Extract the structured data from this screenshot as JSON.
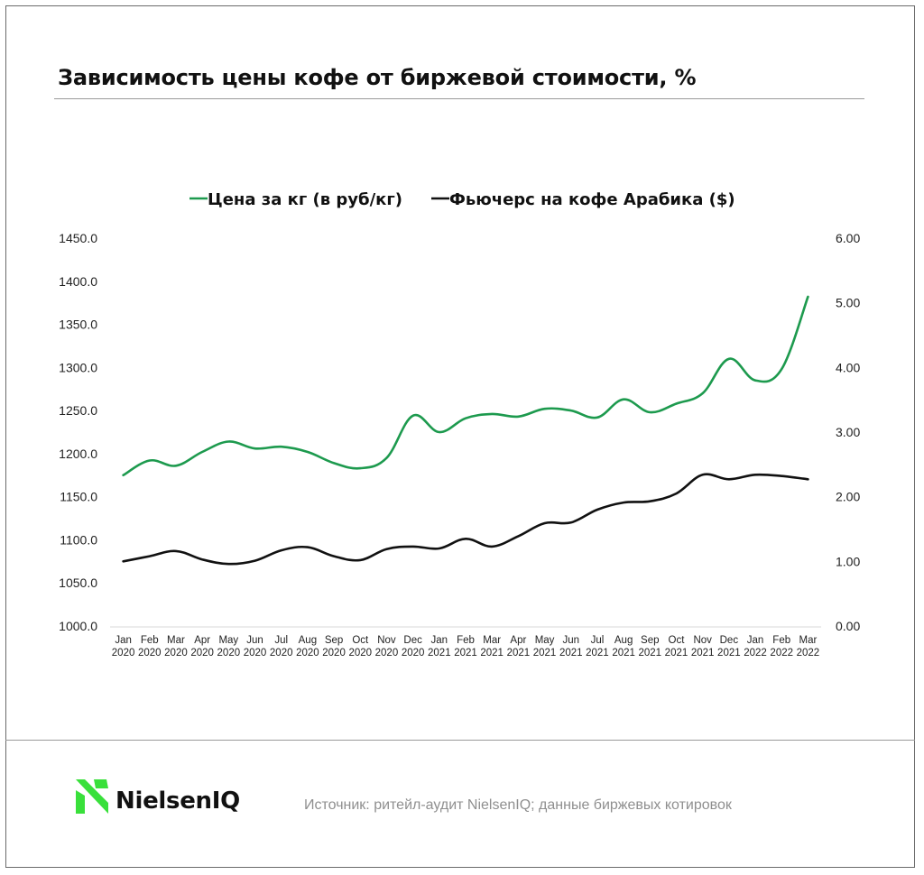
{
  "title": "Зависимость цены кофе от биржевой стоимости, %",
  "footer": {
    "logo_text": "NielsenIQ",
    "source": "Источник: ритейл-аудит NielsenIQ; данные биржевых котировок"
  },
  "colors": {
    "green": "#1d9a4e",
    "black": "#111111",
    "logo_green": "#39e03b"
  },
  "chart_data": {
    "type": "line",
    "title": "Зависимость цены кофе от биржевой стоимости, %",
    "legend_position": "top-center",
    "grid": false,
    "categories": [
      [
        "Jan",
        "2020"
      ],
      [
        "Feb",
        "2020"
      ],
      [
        "Mar",
        "2020"
      ],
      [
        "Apr",
        "2020"
      ],
      [
        "May",
        "2020"
      ],
      [
        "Jun",
        "2020"
      ],
      [
        "Jul",
        "2020"
      ],
      [
        "Aug",
        "2020"
      ],
      [
        "Sep",
        "2020"
      ],
      [
        "Oct",
        "2020"
      ],
      [
        "Nov",
        "2020"
      ],
      [
        "Dec",
        "2020"
      ],
      [
        "Jan",
        "2021"
      ],
      [
        "Feb",
        "2021"
      ],
      [
        "Mar",
        "2021"
      ],
      [
        "Apr",
        "2021"
      ],
      [
        "May",
        "2021"
      ],
      [
        "Jun",
        "2021"
      ],
      [
        "Jul",
        "2021"
      ],
      [
        "Aug",
        "2021"
      ],
      [
        "Sep",
        "2021"
      ],
      [
        "Oct",
        "2021"
      ],
      [
        "Nov",
        "2021"
      ],
      [
        "Dec",
        "2021"
      ],
      [
        "Jan",
        "2022"
      ],
      [
        "Feb",
        "2022"
      ],
      [
        "Mar",
        "2022"
      ]
    ],
    "y_left": {
      "min": 1000,
      "max": 1450,
      "ticks": [
        "1000.0",
        "1050.0",
        "1100.0",
        "1150.0",
        "1200.0",
        "1250.0",
        "1300.0",
        "1350.0",
        "1400.0",
        "1450.0"
      ]
    },
    "y_right": {
      "min": 0,
      "max": 6,
      "ticks": [
        "0.00",
        "1.00",
        "2.00",
        "3.00",
        "4.00",
        "5.00",
        "6.00"
      ]
    },
    "series": [
      {
        "name": "Цена за кг (в руб/кг)",
        "axis": "left",
        "color": "#1d9a4e",
        "values": [
          1175,
          1192,
          1186,
          1202,
          1214,
          1206,
          1208,
          1202,
          1189,
          1183,
          1195,
          1244,
          1225,
          1241,
          1246,
          1243,
          1252,
          1250,
          1242,
          1263,
          1248,
          1258,
          1270,
          1310,
          1285,
          1298,
          1382
        ]
      },
      {
        "name": "Фьючерс на кофе Арабика ($)",
        "axis": "right",
        "color": "#111111",
        "values": [
          1.0,
          1.08,
          1.16,
          1.03,
          0.96,
          1.01,
          1.17,
          1.22,
          1.08,
          1.02,
          1.19,
          1.23,
          1.2,
          1.35,
          1.23,
          1.39,
          1.59,
          1.6,
          1.8,
          1.91,
          1.93,
          2.05,
          2.34,
          2.27,
          2.34,
          2.32,
          2.27
        ]
      }
    ]
  }
}
